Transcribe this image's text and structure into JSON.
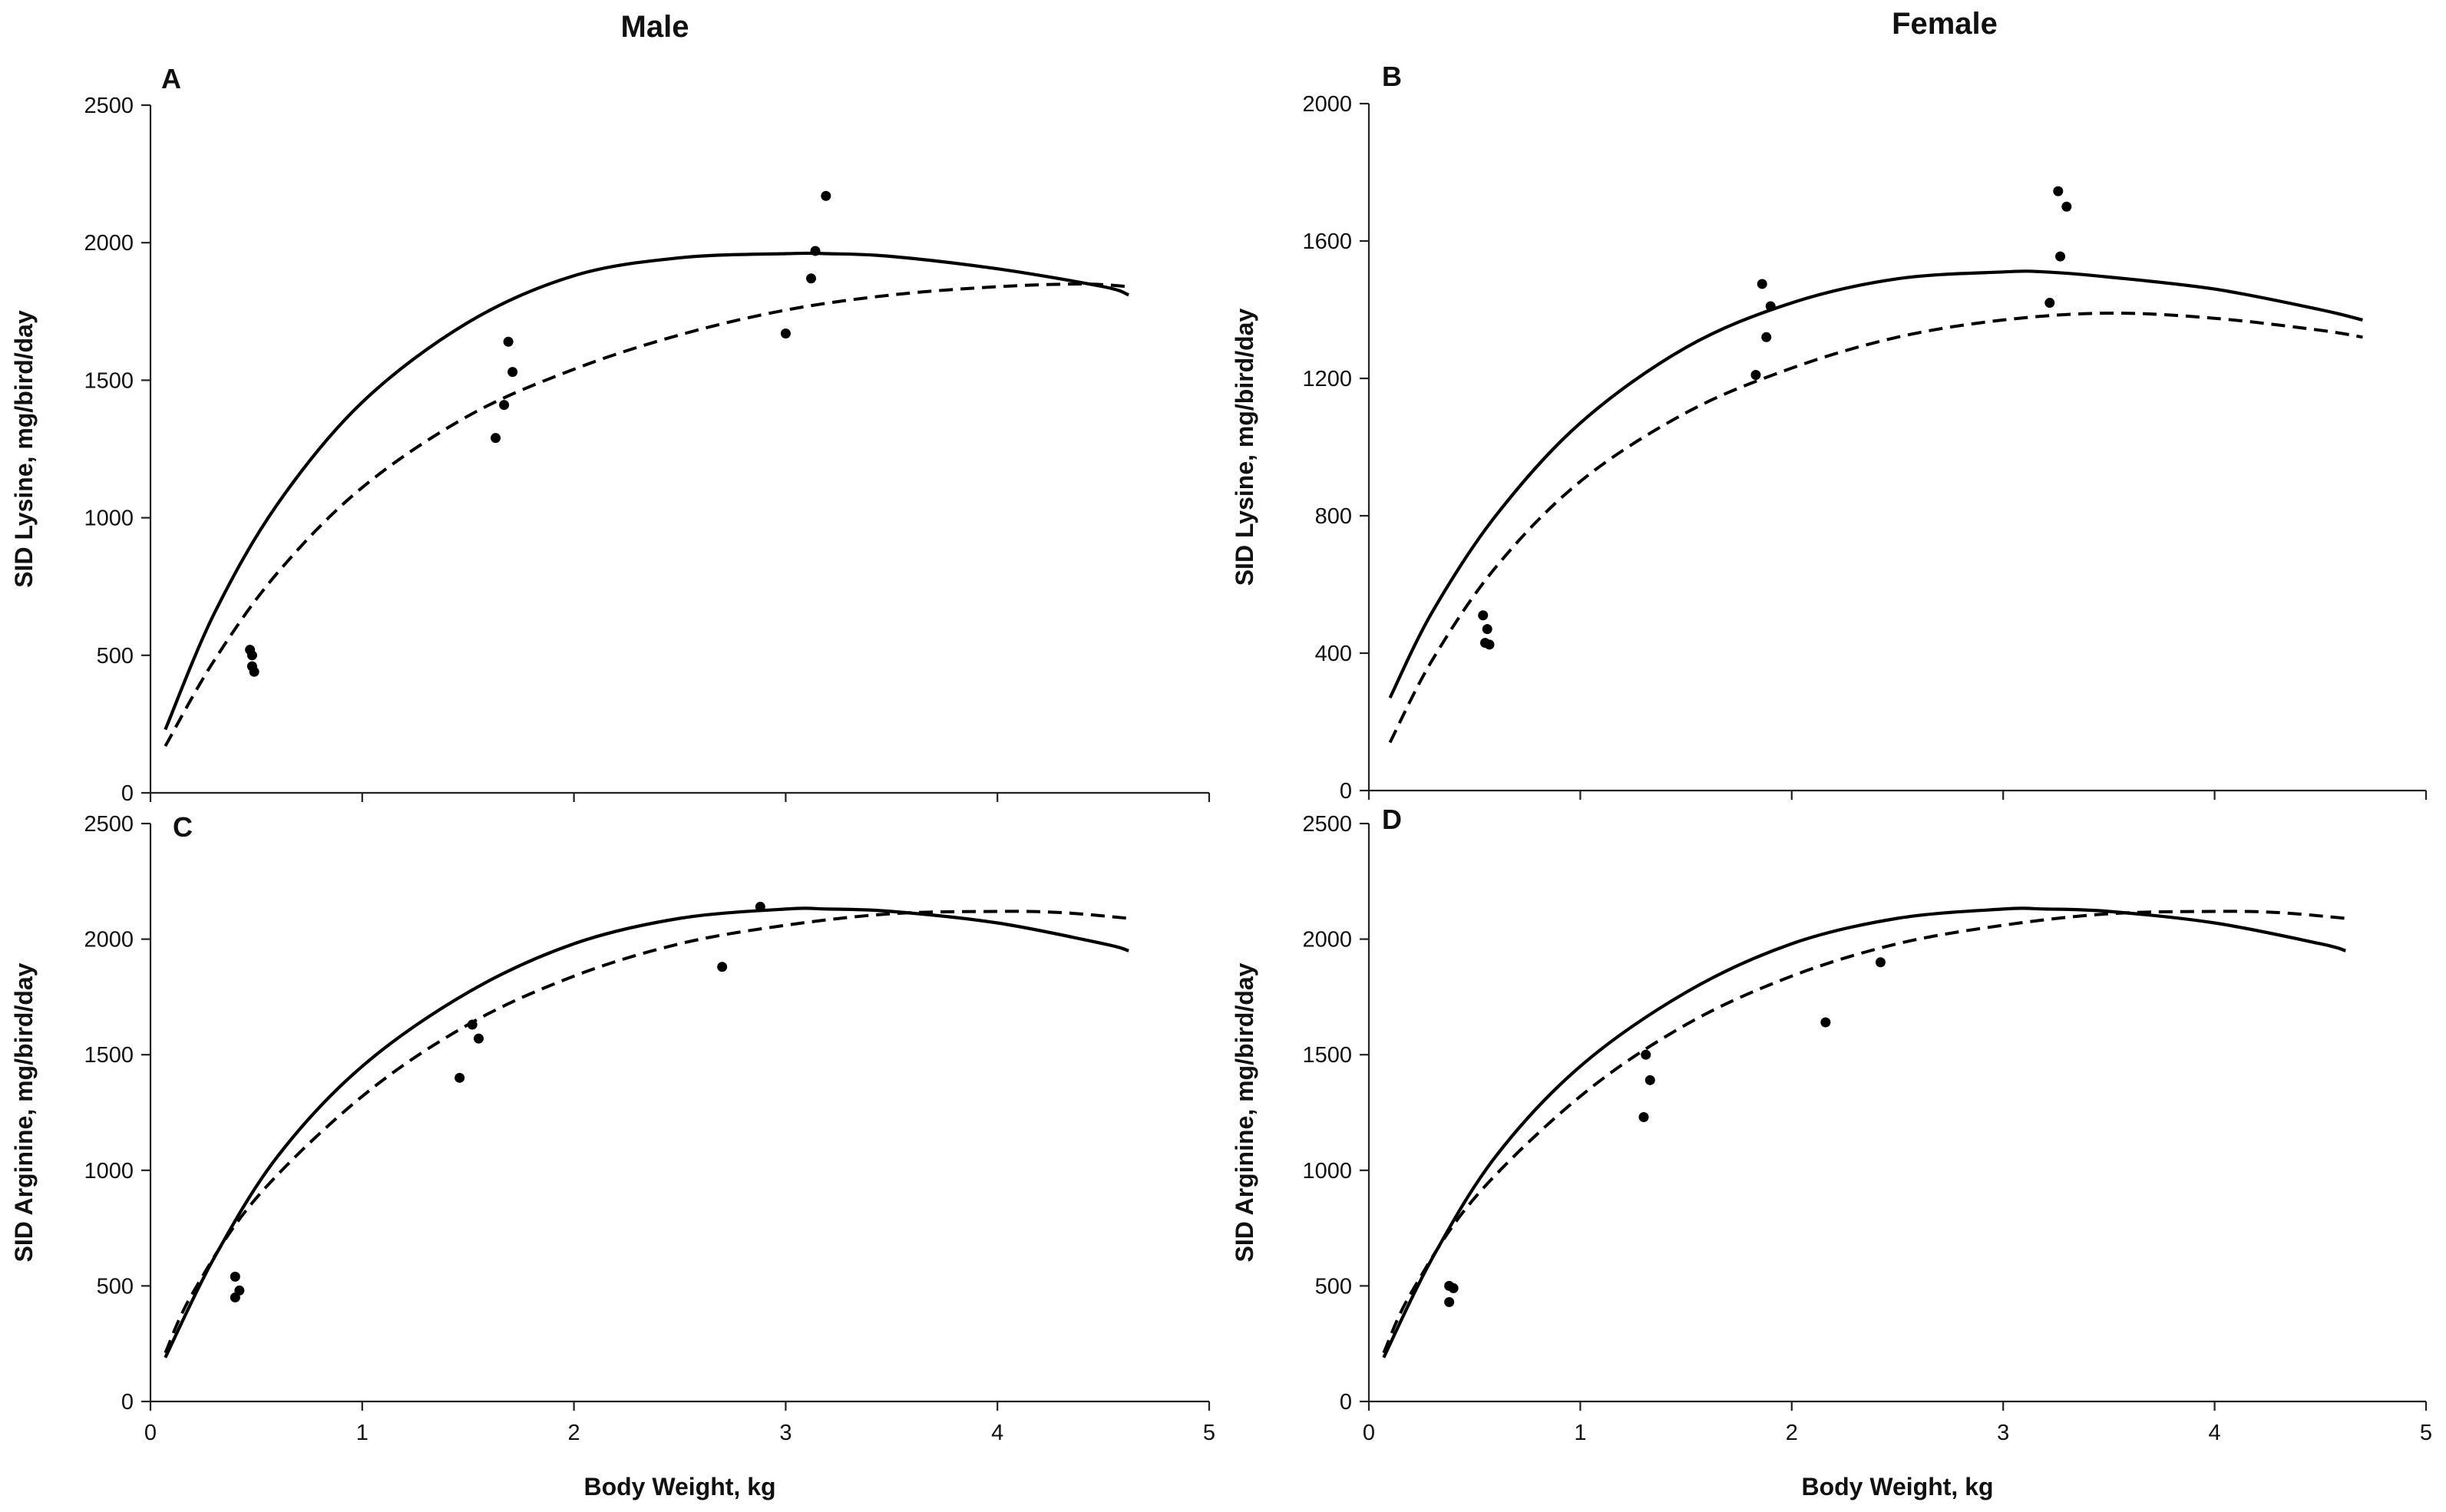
{
  "figure": {
    "column_titles": [
      "Male",
      "Female"
    ]
  },
  "chart_data": [
    {
      "type": "scatter",
      "panel": "A",
      "title": "Male",
      "xlabel": "Body Weight, kg",
      "ylabel": "SID Lysine, mg/bird/day",
      "xlim": [
        0,
        5
      ],
      "ylim": [
        0,
        2500
      ],
      "xticks": [
        0,
        1,
        2,
        3,
        4,
        5
      ],
      "yticks": [
        0,
        500,
        1000,
        1500,
        2000,
        2500
      ],
      "show_x_tick_labels": false,
      "show_xlabel": false,
      "points": [
        [
          0.47,
          520
        ],
        [
          0.48,
          500
        ],
        [
          0.48,
          460
        ],
        [
          0.49,
          440
        ],
        [
          1.63,
          1290
        ],
        [
          1.67,
          1410
        ],
        [
          1.69,
          1640
        ],
        [
          1.71,
          1530
        ],
        [
          3.0,
          1670
        ],
        [
          3.12,
          1870
        ],
        [
          3.14,
          1970
        ],
        [
          3.19,
          2170
        ]
      ],
      "series": [
        {
          "name": "solid",
          "style": "solid",
          "x": [
            0.07,
            0.3,
            0.6,
            1.0,
            1.5,
            2.0,
            2.5,
            3.0,
            3.2,
            3.5,
            4.0,
            4.5,
            4.62
          ],
          "y": [
            230,
            650,
            1050,
            1420,
            1710,
            1880,
            1945,
            1960,
            1960,
            1950,
            1905,
            1840,
            1810
          ]
        },
        {
          "name": "dashed",
          "style": "dashed",
          "x": [
            0.07,
            0.3,
            0.6,
            1.0,
            1.5,
            2.0,
            2.5,
            3.0,
            3.5,
            4.0,
            4.4,
            4.62
          ],
          "y": [
            170,
            480,
            800,
            1110,
            1370,
            1540,
            1665,
            1755,
            1810,
            1840,
            1850,
            1840
          ]
        }
      ]
    },
    {
      "type": "scatter",
      "panel": "B",
      "title": "Female",
      "xlabel": "Body Weight, kg",
      "ylabel": "SID Lysine, mg/bird/day",
      "xlim": [
        0,
        5
      ],
      "ylim": [
        0,
        2000
      ],
      "xticks": [
        0,
        1,
        2,
        3,
        4,
        5
      ],
      "yticks": [
        0,
        400,
        800,
        1200,
        1600,
        2000
      ],
      "show_x_tick_labels": false,
      "show_xlabel": false,
      "points": [
        [
          0.54,
          510
        ],
        [
          0.56,
          470
        ],
        [
          0.55,
          430
        ],
        [
          0.57,
          425
        ],
        [
          1.83,
          1210
        ],
        [
          1.86,
          1475
        ],
        [
          1.88,
          1320
        ],
        [
          1.9,
          1410
        ],
        [
          3.22,
          1420
        ],
        [
          3.26,
          1745
        ],
        [
          3.27,
          1555
        ],
        [
          3.3,
          1700
        ]
      ],
      "series": [
        {
          "name": "solid",
          "style": "solid",
          "x": [
            0.1,
            0.3,
            0.6,
            1.0,
            1.5,
            2.0,
            2.5,
            3.0,
            3.2,
            3.5,
            4.0,
            4.5,
            4.7
          ],
          "y": [
            270,
            520,
            800,
            1070,
            1290,
            1420,
            1490,
            1510,
            1510,
            1495,
            1460,
            1400,
            1370
          ]
        },
        {
          "name": "dashed",
          "style": "dashed",
          "x": [
            0.1,
            0.3,
            0.6,
            1.0,
            1.5,
            2.0,
            2.5,
            3.0,
            3.5,
            4.0,
            4.5,
            4.7
          ],
          "y": [
            140,
            380,
            650,
            900,
            1100,
            1230,
            1320,
            1370,
            1390,
            1375,
            1340,
            1320
          ]
        }
      ]
    },
    {
      "type": "scatter",
      "panel": "C",
      "title": "",
      "xlabel": "Body Weight, kg",
      "ylabel": "SID Arginine, mg/bird/day",
      "xlim": [
        0,
        5
      ],
      "ylim": [
        0,
        2500
      ],
      "xticks": [
        0,
        1,
        2,
        3,
        4,
        5
      ],
      "yticks": [
        0,
        500,
        1000,
        1500,
        2000,
        2500
      ],
      "show_x_tick_labels": true,
      "show_xlabel": true,
      "points": [
        [
          0.4,
          540
        ],
        [
          0.4,
          450
        ],
        [
          0.42,
          480
        ],
        [
          1.46,
          1400
        ],
        [
          1.52,
          1630
        ],
        [
          1.55,
          1570
        ],
        [
          2.7,
          1880
        ],
        [
          2.88,
          2140
        ]
      ],
      "series": [
        {
          "name": "solid",
          "style": "solid",
          "x": [
            0.07,
            0.3,
            0.6,
            1.0,
            1.5,
            2.0,
            2.5,
            3.0,
            3.2,
            3.5,
            4.0,
            4.5,
            4.62
          ],
          "y": [
            190,
            620,
            1060,
            1450,
            1770,
            1980,
            2090,
            2130,
            2130,
            2120,
            2070,
            1980,
            1950
          ]
        },
        {
          "name": "dashed",
          "style": "dashed",
          "x": [
            0.07,
            0.2,
            0.5,
            1.0,
            1.5,
            2.0,
            2.5,
            3.0,
            3.5,
            4.0,
            4.3,
            4.62
          ],
          "y": [
            210,
            470,
            880,
            1320,
            1630,
            1840,
            1980,
            2060,
            2110,
            2120,
            2115,
            2090
          ]
        }
      ]
    },
    {
      "type": "scatter",
      "panel": "D",
      "title": "",
      "xlabel": "Body Weight, kg",
      "ylabel": "SID Arginine, mg/bird/day",
      "xlim": [
        0,
        5
      ],
      "ylim": [
        0,
        2500
      ],
      "xticks": [
        0,
        1,
        2,
        3,
        4,
        5
      ],
      "yticks": [
        0,
        500,
        1000,
        1500,
        2000,
        2500
      ],
      "show_x_tick_labels": true,
      "show_xlabel": true,
      "points": [
        [
          0.38,
          500
        ],
        [
          0.38,
          430
        ],
        [
          0.4,
          490
        ],
        [
          1.3,
          1230
        ],
        [
          1.31,
          1500
        ],
        [
          1.33,
          1390
        ],
        [
          2.16,
          1640
        ],
        [
          2.42,
          1900
        ]
      ],
      "series": [
        {
          "name": "solid",
          "style": "solid",
          "x": [
            0.07,
            0.3,
            0.6,
            1.0,
            1.5,
            2.0,
            2.5,
            3.0,
            3.2,
            3.5,
            4.0,
            4.5,
            4.62
          ],
          "y": [
            190,
            620,
            1060,
            1450,
            1770,
            1980,
            2090,
            2130,
            2130,
            2120,
            2070,
            1980,
            1950
          ]
        },
        {
          "name": "dashed",
          "style": "dashed",
          "x": [
            0.07,
            0.2,
            0.5,
            1.0,
            1.5,
            2.0,
            2.5,
            3.0,
            3.5,
            4.0,
            4.3,
            4.62
          ],
          "y": [
            210,
            470,
            880,
            1320,
            1630,
            1840,
            1980,
            2060,
            2110,
            2120,
            2115,
            2090
          ]
        }
      ]
    }
  ]
}
